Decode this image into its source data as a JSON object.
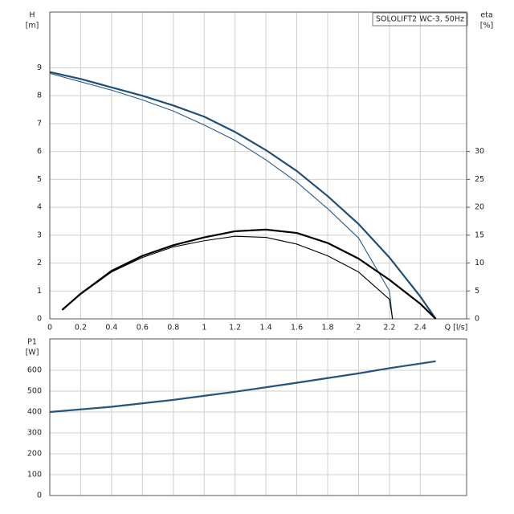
{
  "chart_data": [
    {
      "type": "line",
      "title": "SOLOLIFT2 WC-3, 50Hz",
      "ylabel": "H",
      "yunit": "[m]",
      "y2label": "eta",
      "y2unit": "[%]",
      "xlabel": "Q [l/s]",
      "xlim": [
        0,
        2.7
      ],
      "xticks": [
        0,
        0.2,
        0.4,
        0.6,
        0.8,
        1.0,
        1.2,
        1.4,
        1.6,
        1.8,
        2.0,
        2.2,
        2.4
      ],
      "ylim": [
        0,
        11
      ],
      "yticks": [
        0,
        1,
        2,
        3,
        4,
        5,
        6,
        7,
        8,
        9
      ],
      "y2lim": [
        0,
        55
      ],
      "y2ticks": [
        0,
        5,
        10,
        15,
        20,
        25,
        30
      ],
      "grid": true,
      "series": [
        {
          "color": "#1f4e79",
          "width": 2.2,
          "x": [
            0,
            0.2,
            0.4,
            0.6,
            0.8,
            1.0,
            1.2,
            1.4,
            1.6,
            1.8,
            2.0,
            2.2,
            2.4,
            2.5
          ],
          "values": [
            8.85,
            8.6,
            8.3,
            8.0,
            7.65,
            7.25,
            6.7,
            6.05,
            5.3,
            4.4,
            3.4,
            2.2,
            0.8,
            0
          ]
        },
        {
          "color": "#2a5a8a",
          "width": 1.1,
          "x": [
            0,
            0.2,
            0.4,
            0.6,
            0.8,
            1.0,
            1.2,
            1.4,
            1.6,
            1.8,
            2.0,
            2.2,
            2.22
          ],
          "values": [
            8.8,
            8.5,
            8.2,
            7.85,
            7.45,
            6.95,
            6.4,
            5.7,
            4.9,
            3.95,
            2.9,
            1.0,
            0
          ]
        },
        {
          "color": "#000000",
          "width": 2.2,
          "axis": "y2",
          "x": [
            0.08,
            0.2,
            0.4,
            0.6,
            0.8,
            1.0,
            1.2,
            1.4,
            1.6,
            1.8,
            2.0,
            2.2,
            2.4,
            2.5
          ],
          "values": [
            1.6,
            4.5,
            8.6,
            11.3,
            13.2,
            14.6,
            15.7,
            16.0,
            15.4,
            13.6,
            10.8,
            7.0,
            2.7,
            0
          ]
        },
        {
          "color": "#000000",
          "width": 1.1,
          "axis": "y2",
          "x": [
            0.08,
            0.2,
            0.4,
            0.6,
            0.8,
            1.0,
            1.2,
            1.4,
            1.6,
            1.8,
            2.0,
            2.2,
            2.22
          ],
          "values": [
            1.6,
            4.4,
            8.4,
            11.0,
            12.9,
            14.0,
            14.8,
            14.6,
            13.4,
            11.3,
            8.4,
            3.5,
            0
          ]
        }
      ]
    },
    {
      "type": "line",
      "ylabel": "P1",
      "yunit": "[W]",
      "xlim": [
        0,
        2.7
      ],
      "ylim": [
        0,
        750
      ],
      "yticks": [
        0,
        100,
        200,
        300,
        400,
        500,
        600
      ],
      "grid": true,
      "series": [
        {
          "color": "#1f4e79",
          "width": 2.2,
          "x": [
            0,
            0.4,
            0.8,
            1.2,
            1.6,
            2.0,
            2.2,
            2.5
          ],
          "values": [
            400,
            425,
            458,
            497,
            540,
            585,
            610,
            643
          ]
        },
        {
          "color": "#2a5a8a",
          "width": 1.1,
          "x": [
            0,
            0.4,
            0.8,
            1.2,
            1.6,
            2.0,
            2.2,
            2.5
          ],
          "values": [
            401,
            427,
            460,
            498,
            542,
            587,
            612,
            643
          ]
        }
      ]
    }
  ]
}
